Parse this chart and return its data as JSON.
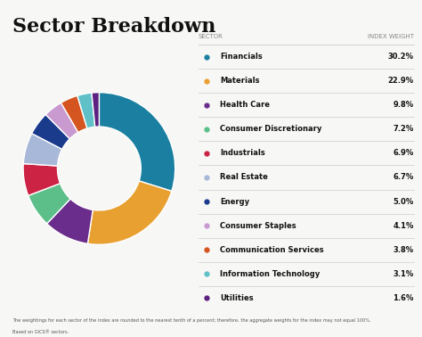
{
  "title": "Sector Breakdown",
  "sectors": [
    {
      "name": "Financials",
      "value": 30.2,
      "color": "#1a7fa0"
    },
    {
      "name": "Materials",
      "value": 22.9,
      "color": "#e8a030"
    },
    {
      "name": "Health Care",
      "value": 9.8,
      "color": "#6b2d8b"
    },
    {
      "name": "Consumer Discretionary",
      "value": 7.2,
      "color": "#5cbf8a"
    },
    {
      "name": "Industrials",
      "value": 6.9,
      "color": "#cc2244"
    },
    {
      "name": "Real Estate",
      "value": 6.7,
      "color": "#a8b8d8"
    },
    {
      "name": "Energy",
      "value": 5.0,
      "color": "#1a3a8c"
    },
    {
      "name": "Consumer Staples",
      "value": 4.1,
      "color": "#c89ad0"
    },
    {
      "name": "Communication Services",
      "value": 3.8,
      "color": "#d45520"
    },
    {
      "name": "Information Technology",
      "value": 3.1,
      "color": "#60c0c8"
    },
    {
      "name": "Utilities",
      "value": 1.6,
      "color": "#5c2080"
    }
  ],
  "footnote1": "The weightings for each sector of the index are rounded to the nearest tenth of a percent; therefore, the aggregate weights for the index may not equal 100%.",
  "footnote2": "Based on GICS® sectors.",
  "bg_color": "#f7f7f5",
  "col_header_sector": "SECTOR",
  "col_header_weight": "INDEX WEIGHT"
}
